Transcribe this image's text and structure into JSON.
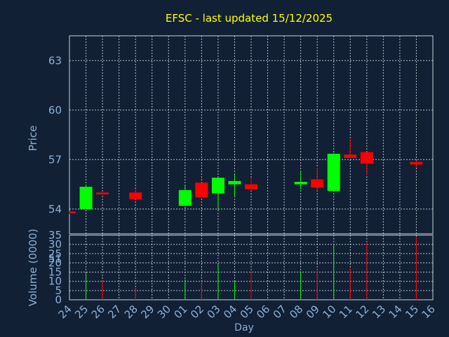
{
  "title": "EFSC - last updated 15/12/2025",
  "colors": {
    "background": "#112034",
    "title": "#ffff00",
    "axis_text": "#8cb0d8",
    "up": "#00ff00",
    "down": "#ff0000",
    "grid": "#c8d0d8"
  },
  "chart_data": [
    {
      "type": "candlestick",
      "ylabel": "Price",
      "ylim": [
        52.5,
        64.5
      ],
      "yticks": [
        51,
        54,
        57,
        60,
        63
      ],
      "grid": true,
      "categories": [
        "24",
        "25",
        "26",
        "27",
        "28",
        "29",
        "30",
        "01",
        "02",
        "03",
        "04",
        "05",
        "06",
        "07",
        "08",
        "09",
        "10",
        "11",
        "12",
        "13",
        "14",
        "15",
        "16"
      ],
      "candles": [
        {
          "day": "24",
          "open": 53.85,
          "close": 53.75,
          "high": 53.85,
          "low": 53.7
        },
        {
          "day": "25",
          "open": 54.0,
          "close": 55.35,
          "high": 55.45,
          "low": 54.0
        },
        {
          "day": "26",
          "open": 55.0,
          "close": 54.95,
          "high": 55.0,
          "low": 54.9
        },
        {
          "day": "28",
          "open": 55.0,
          "close": 54.6,
          "high": 55.2,
          "low": 54.6
        },
        {
          "day": "01",
          "open": 54.2,
          "close": 55.15,
          "high": 55.45,
          "low": 54.15
        },
        {
          "day": "02",
          "open": 55.6,
          "close": 54.7,
          "high": 55.6,
          "low": 54.7
        },
        {
          "day": "03",
          "open": 54.95,
          "close": 55.9,
          "high": 55.95,
          "low": 53.95
        },
        {
          "day": "04",
          "open": 55.5,
          "close": 55.7,
          "high": 56.1,
          "low": 54.7
        },
        {
          "day": "05",
          "open": 55.5,
          "close": 55.2,
          "high": 55.9,
          "low": 55.2
        },
        {
          "day": "08",
          "open": 55.5,
          "close": 55.65,
          "high": 56.3,
          "low": 55.2
        },
        {
          "day": "09",
          "open": 55.8,
          "close": 55.3,
          "high": 56.5,
          "low": 55.1
        },
        {
          "day": "10",
          "open": 55.1,
          "close": 57.35,
          "high": 57.4,
          "low": 55.1
        },
        {
          "day": "11",
          "open": 57.3,
          "close": 57.1,
          "high": 58.25,
          "low": 57.1
        },
        {
          "day": "12",
          "open": 57.45,
          "close": 56.75,
          "high": 57.45,
          "low": 56.05
        },
        {
          "day": "15",
          "open": 56.85,
          "close": 56.7,
          "high": 56.95,
          "low": 56.5
        }
      ]
    },
    {
      "type": "bar",
      "xlabel": "Day",
      "ylabel": "Volume (0000)",
      "ylim": [
        0,
        35
      ],
      "yticks": [
        0,
        5,
        10,
        15,
        20,
        25,
        30,
        35
      ],
      "grid": true,
      "categories": [
        "24",
        "25",
        "26",
        "27",
        "28",
        "29",
        "30",
        "01",
        "02",
        "03",
        "04",
        "05",
        "06",
        "07",
        "08",
        "09",
        "10",
        "11",
        "12",
        "13",
        "14",
        "15",
        "16"
      ],
      "bars": [
        {
          "day": "25",
          "value": 14.5,
          "direction": "up"
        },
        {
          "day": "26",
          "value": 10.5,
          "direction": "down"
        },
        {
          "day": "28",
          "value": 6.5,
          "direction": "down"
        },
        {
          "day": "01",
          "value": 11.0,
          "direction": "up"
        },
        {
          "day": "02",
          "value": 10.0,
          "direction": "down"
        },
        {
          "day": "03",
          "value": 19.0,
          "direction": "up"
        },
        {
          "day": "04",
          "value": 10.0,
          "direction": "up"
        },
        {
          "day": "05",
          "value": 15.0,
          "direction": "down"
        },
        {
          "day": "08",
          "value": 15.5,
          "direction": "up"
        },
        {
          "day": "09",
          "value": 16.5,
          "direction": "down"
        },
        {
          "day": "10",
          "value": 30.5,
          "direction": "up"
        },
        {
          "day": "11",
          "value": 17.0,
          "direction": "down"
        },
        {
          "day": "12",
          "value": 31.5,
          "direction": "down"
        },
        {
          "day": "15",
          "value": 34.0,
          "direction": "down"
        }
      ]
    }
  ]
}
